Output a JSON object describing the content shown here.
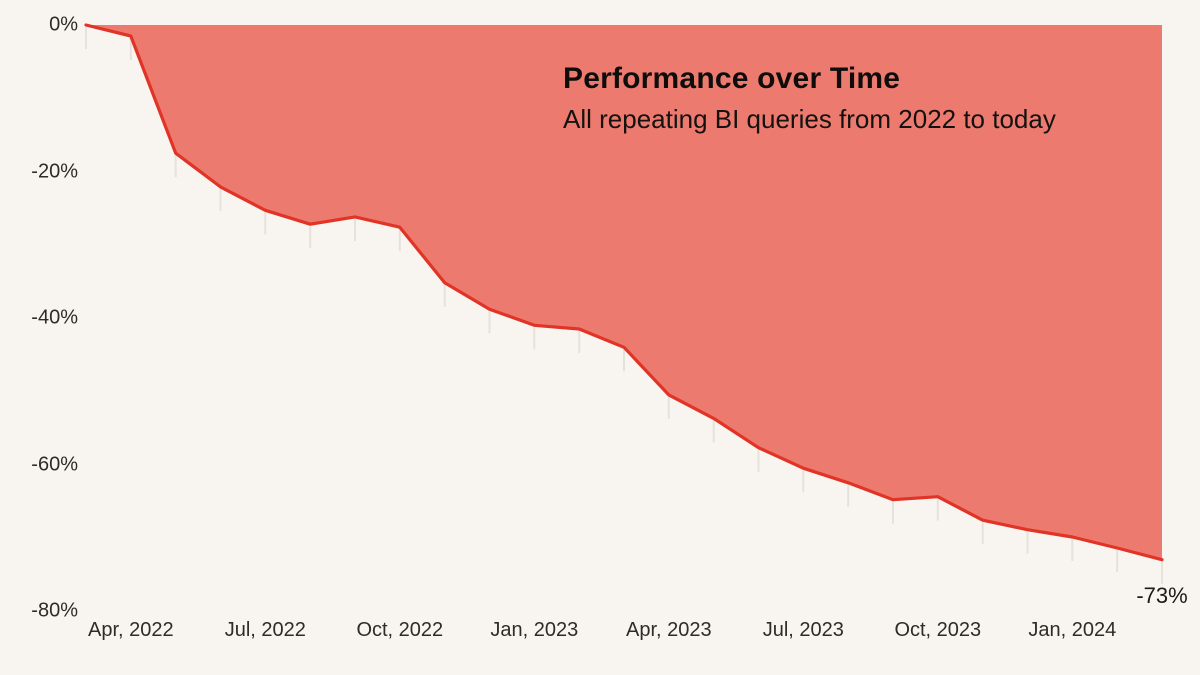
{
  "header": {
    "title": "Performance over Time",
    "subtitle": "All repeating BI queries from 2022 to today"
  },
  "chart_data": {
    "type": "area",
    "title": "Performance over Time",
    "subtitle": "All repeating BI queries from 2022 to today",
    "unit": "%",
    "x_interval": "monthly",
    "categories": [
      "Mar, 2022",
      "Apr, 2022",
      "May, 2022",
      "Jun, 2022",
      "Jul, 2022",
      "Aug, 2022",
      "Sep, 2022",
      "Oct, 2022",
      "Nov, 2022",
      "Dec, 2022",
      "Jan, 2023",
      "Feb, 2023",
      "Mar, 2023",
      "Apr, 2023",
      "May, 2023",
      "Jun, 2023",
      "Jul, 2023",
      "Aug, 2023",
      "Sep, 2023",
      "Oct, 2023",
      "Nov, 2023",
      "Dec, 2023",
      "Jan, 2024",
      "Feb, 2024",
      "Mar, 2024"
    ],
    "series": [
      {
        "name": "All repeating BI queries",
        "values": [
          0,
          -1.5,
          -17.5,
          -22.1,
          -25.3,
          -27.2,
          -26.2,
          -27.6,
          -35.2,
          -38.8,
          -41.0,
          -41.5,
          -44.0,
          -50.5,
          -53.7,
          -57.7,
          -60.5,
          -62.5,
          -64.8,
          -64.4,
          -67.6,
          -68.9,
          -69.9,
          -71.4,
          -73.0
        ]
      }
    ],
    "ylim": [
      -80,
      0
    ],
    "y_ticks": [
      {
        "label": "0%",
        "value": 0
      },
      {
        "label": "-20%",
        "value": -20
      },
      {
        "label": "-40%",
        "value": -40
      },
      {
        "label": "-60%",
        "value": -60
      },
      {
        "label": "-80%",
        "value": -80
      }
    ],
    "x_ticks": [
      {
        "label": "Apr, 2022",
        "index": 1
      },
      {
        "label": "Jul, 2022",
        "index": 4
      },
      {
        "label": "Oct, 2022",
        "index": 7
      },
      {
        "label": "Jan, 2023",
        "index": 10
      },
      {
        "label": "Apr, 2023",
        "index": 13
      },
      {
        "label": "Jul, 2023",
        "index": 16
      },
      {
        "label": "Oct, 2023",
        "index": 19
      },
      {
        "label": "Jan, 2024",
        "index": 22
      }
    ],
    "end_label": "-73%",
    "legend": "none",
    "grid": "off",
    "colors": {
      "fill": "#ed7a6e",
      "stroke": "#e13326",
      "dropline": "#e6e2da",
      "background": "#f8f5f0",
      "text": "#1c1a18"
    }
  }
}
